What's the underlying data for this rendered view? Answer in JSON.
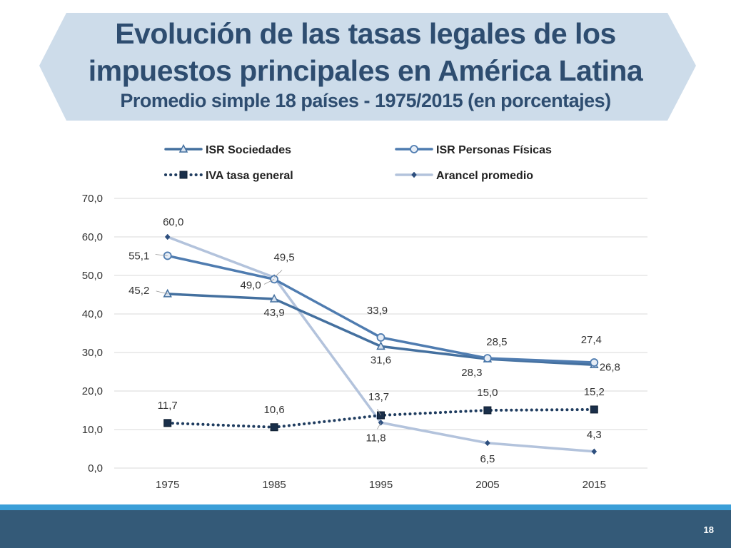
{
  "slide": {
    "title_line1": "Evolución de las tasas legales de los",
    "title_line2": "impuestos principales en América Latina",
    "subtitle": "Promedio simple 18 países - 1975/2015 (en porcentajes)",
    "page_number": "18"
  },
  "colors": {
    "banner": "#cddcea",
    "title": "#2e4d70",
    "isr_sociedades": "#44709f",
    "isr_personas": "#4f7cb0",
    "iva": "#1f3c5f",
    "arancel": "#b3c3dc",
    "footer": "#345a78",
    "stripe": "#3b9fd8"
  },
  "chart_data": {
    "type": "line",
    "categories": [
      "1975",
      "1985",
      "1995",
      "2005",
      "2015"
    ],
    "ylim": [
      0,
      70
    ],
    "yticks": [
      0,
      10,
      20,
      30,
      40,
      50,
      60,
      70
    ],
    "ytick_labels": [
      "0,0",
      "10,0",
      "20,0",
      "30,0",
      "40,0",
      "50,0",
      "60,0",
      "70,0"
    ],
    "grid": true,
    "legend_position": "top",
    "series": [
      {
        "key": "isr_sociedades",
        "name": "ISR Sociedades",
        "values": [
          45.2,
          43.9,
          31.6,
          28.3,
          26.8
        ],
        "labels": [
          "45,2",
          "43,9",
          "31,6",
          "28,3",
          "26,8"
        ],
        "marker": "triangle",
        "style": "solid"
      },
      {
        "key": "isr_personas",
        "name": "ISR Personas Físicas",
        "values": [
          55.1,
          49.0,
          33.9,
          28.5,
          27.4
        ],
        "labels": [
          "55,1",
          "49,0",
          "33,9",
          "28,5",
          "27,4"
        ],
        "marker": "circle",
        "style": "solid"
      },
      {
        "key": "iva",
        "name": "IVA tasa general",
        "values": [
          11.7,
          10.6,
          13.7,
          15.0,
          15.2
        ],
        "labels": [
          "11,7",
          "10,6",
          "13,7",
          "15,0",
          "15,2"
        ],
        "marker": "square",
        "style": "dotted"
      },
      {
        "key": "arancel",
        "name": "Arancel promedio",
        "values": [
          60.0,
          49.5,
          11.8,
          6.5,
          4.3
        ],
        "labels": [
          "60,0",
          "49,5",
          "11,8",
          "6,5",
          "4,3"
        ],
        "marker": "diamond",
        "style": "solid"
      }
    ]
  }
}
